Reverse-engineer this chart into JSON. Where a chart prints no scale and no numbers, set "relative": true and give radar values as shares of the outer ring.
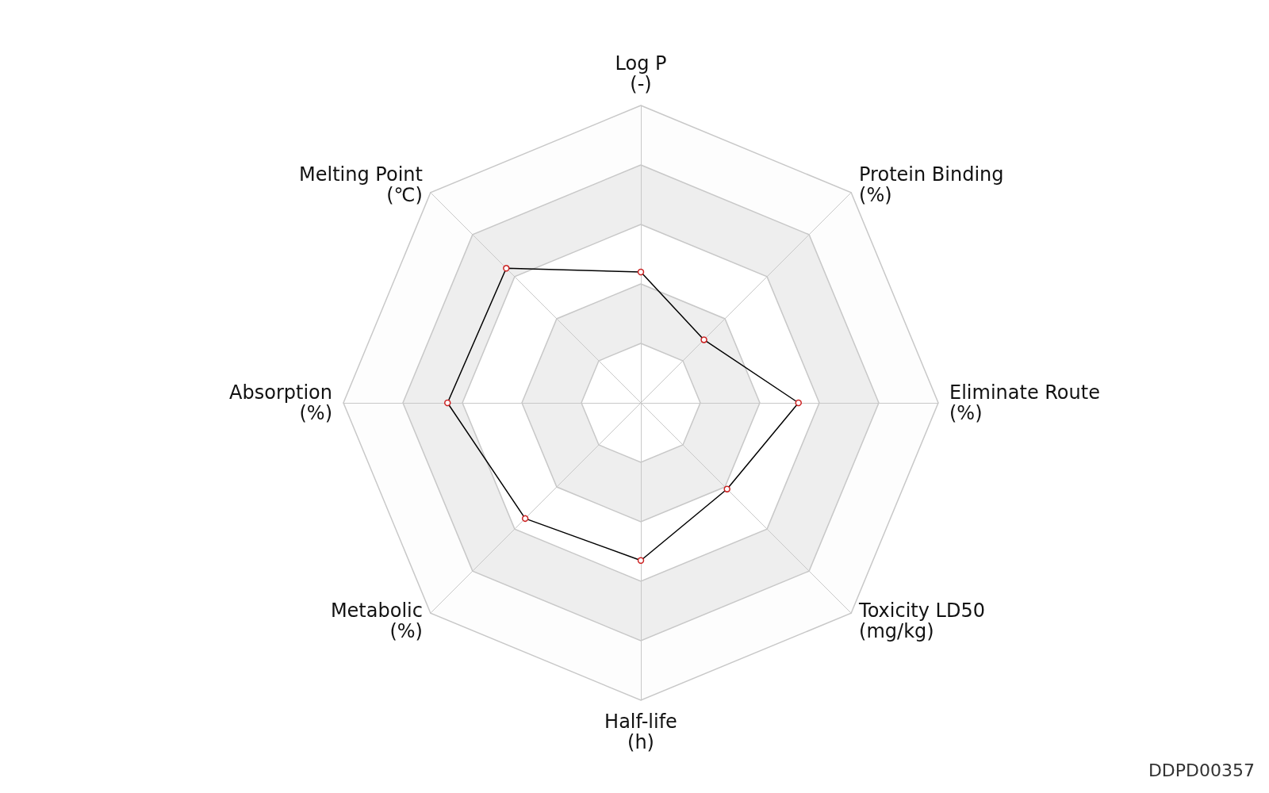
{
  "chart_data": {
    "type": "radar",
    "relative": true,
    "categories": [
      "Log P\n(-)",
      "Protein Binding\n(%)",
      "Eliminate Route\n(%)",
      "Toxicity LD50\n(mg/kg)",
      "Half-life\n(h)",
      "Metabolic\n(%)",
      "Absorption\n(%)",
      "Melting Point\n(℃)"
    ],
    "series": [
      {
        "color": "#000000",
        "values": [
          0.44,
          0.3,
          0.53,
          0.41,
          0.53,
          0.55,
          0.65,
          0.64
        ]
      }
    ],
    "marker": "circle",
    "line_style": "solid",
    "grid": true,
    "annotations": [
      "DDPD00357"
    ]
  }
}
